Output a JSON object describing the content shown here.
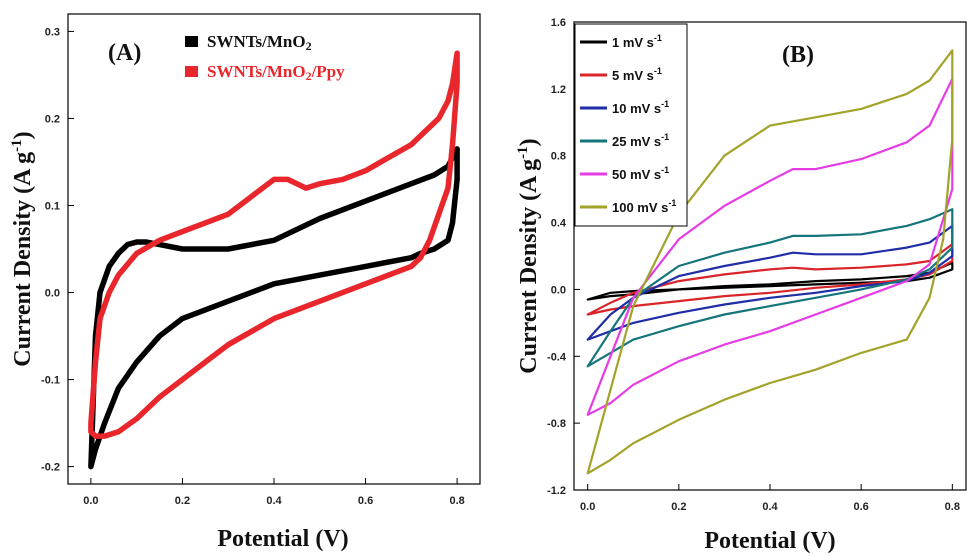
{
  "chart_data": [
    {
      "type": "line",
      "panel_label": "(A)",
      "xlabel": "Potential (V)",
      "ylabel": "Current Density (A g-1)",
      "xlim": [
        -0.05,
        0.85
      ],
      "ylim": [
        -0.22,
        0.32
      ],
      "xticks": [
        "0.0",
        "0.2",
        "0.4",
        "0.6",
        "0.8"
      ],
      "yticks": [
        "-0.2",
        "-0.1",
        "0.0",
        "0.1",
        "0.2",
        "0.3"
      ],
      "legend_position": "top",
      "series": [
        {
          "name": "SWNTs/MnO2",
          "color": "#000000",
          "x": [
            0.0,
            0.01,
            0.02,
            0.04,
            0.06,
            0.08,
            0.1,
            0.12,
            0.15,
            0.2,
            0.3,
            0.4,
            0.5,
            0.6,
            0.7,
            0.75,
            0.78,
            0.79,
            0.8,
            0.8,
            0.79,
            0.78,
            0.75,
            0.72,
            0.7,
            0.6,
            0.5,
            0.4,
            0.3,
            0.2,
            0.15,
            0.1,
            0.06,
            0.03,
            0.01,
            0.0
          ],
          "y": [
            -0.2,
            -0.05,
            0.0,
            0.03,
            0.045,
            0.055,
            0.058,
            0.058,
            0.055,
            0.05,
            0.05,
            0.06,
            0.085,
            0.105,
            0.125,
            0.135,
            0.145,
            0.155,
            0.165,
            0.13,
            0.08,
            0.06,
            0.05,
            0.045,
            0.04,
            0.03,
            0.02,
            0.01,
            -0.01,
            -0.03,
            -0.05,
            -0.08,
            -0.11,
            -0.15,
            -0.18,
            -0.2
          ]
        },
        {
          "name": "SWNTs/MnO2/Ppy",
          "color": "#e8262b",
          "x": [
            0.0,
            0.01,
            0.02,
            0.04,
            0.06,
            0.1,
            0.15,
            0.2,
            0.25,
            0.3,
            0.35,
            0.4,
            0.43,
            0.47,
            0.5,
            0.55,
            0.6,
            0.65,
            0.7,
            0.74,
            0.76,
            0.78,
            0.79,
            0.8,
            0.8,
            0.79,
            0.78,
            0.76,
            0.74,
            0.72,
            0.7,
            0.6,
            0.5,
            0.4,
            0.3,
            0.25,
            0.2,
            0.15,
            0.1,
            0.06,
            0.03,
            0.01,
            0.0
          ],
          "y": [
            -0.15,
            -0.08,
            -0.03,
            0.0,
            0.02,
            0.045,
            0.06,
            0.07,
            0.08,
            0.09,
            0.11,
            0.13,
            0.13,
            0.12,
            0.125,
            0.13,
            0.14,
            0.155,
            0.17,
            0.19,
            0.2,
            0.22,
            0.24,
            0.275,
            0.24,
            0.17,
            0.12,
            0.09,
            0.06,
            0.04,
            0.03,
            0.01,
            -0.01,
            -0.03,
            -0.06,
            -0.08,
            -0.1,
            -0.12,
            -0.145,
            -0.16,
            -0.165,
            -0.165,
            -0.16
          ]
        }
      ]
    },
    {
      "type": "line",
      "panel_label": "(B)",
      "xlabel": "Potential (V)",
      "ylabel": "Current Density (A g-1)",
      "xlim": [
        -0.03,
        0.83
      ],
      "ylim": [
        -1.2,
        1.6
      ],
      "xticks": [
        "0.0",
        "0.2",
        "0.4",
        "0.6",
        "0.8"
      ],
      "yticks": [
        "-1.2",
        "-0.8",
        "-0.4",
        "0.0",
        "0.4",
        "0.8",
        "1.2",
        "1.6"
      ],
      "legend_position": "top-left",
      "series": [
        {
          "name": "1 mV s-1",
          "color": "#000000",
          "x": [
            0.0,
            0.05,
            0.1,
            0.2,
            0.3,
            0.4,
            0.5,
            0.6,
            0.7,
            0.75,
            0.8,
            0.8,
            0.75,
            0.7,
            0.6,
            0.5,
            0.4,
            0.3,
            0.2,
            0.1,
            0.05,
            0.0
          ],
          "y": [
            -0.06,
            -0.04,
            -0.03,
            0.0,
            0.02,
            0.03,
            0.05,
            0.06,
            0.08,
            0.1,
            0.16,
            0.12,
            0.07,
            0.05,
            0.04,
            0.03,
            0.02,
            0.01,
            0.0,
            -0.01,
            -0.02,
            -0.06
          ]
        },
        {
          "name": "5 mV s-1",
          "color": "#d9252a",
          "x": [
            0.0,
            0.05,
            0.1,
            0.2,
            0.3,
            0.4,
            0.45,
            0.5,
            0.6,
            0.7,
            0.75,
            0.8,
            0.8,
            0.75,
            0.7,
            0.6,
            0.5,
            0.4,
            0.3,
            0.2,
            0.1,
            0.05,
            0.0
          ],
          "y": [
            -0.15,
            -0.08,
            -0.02,
            0.05,
            0.09,
            0.12,
            0.13,
            0.12,
            0.13,
            0.15,
            0.17,
            0.27,
            0.17,
            0.09,
            0.06,
            0.03,
            0.01,
            -0.02,
            -0.04,
            -0.07,
            -0.1,
            -0.12,
            -0.15
          ]
        },
        {
          "name": "10 mV s-1",
          "color": "#1f2ea6",
          "x": [
            0.0,
            0.05,
            0.1,
            0.2,
            0.3,
            0.4,
            0.45,
            0.5,
            0.6,
            0.7,
            0.75,
            0.8,
            0.8,
            0.75,
            0.7,
            0.6,
            0.5,
            0.4,
            0.3,
            0.2,
            0.1,
            0.05,
            0.0
          ],
          "y": [
            -0.3,
            -0.15,
            -0.05,
            0.08,
            0.14,
            0.19,
            0.22,
            0.21,
            0.21,
            0.25,
            0.28,
            0.38,
            0.2,
            0.1,
            0.05,
            0.02,
            -0.02,
            -0.05,
            -0.09,
            -0.14,
            -0.2,
            -0.25,
            -0.3
          ]
        },
        {
          "name": "25 mV s-1",
          "color": "#16757a",
          "x": [
            0.0,
            0.05,
            0.1,
            0.2,
            0.3,
            0.4,
            0.45,
            0.5,
            0.6,
            0.7,
            0.75,
            0.8,
            0.8,
            0.75,
            0.7,
            0.6,
            0.5,
            0.4,
            0.3,
            0.2,
            0.1,
            0.05,
            0.0
          ],
          "y": [
            -0.46,
            -0.25,
            -0.05,
            0.14,
            0.22,
            0.28,
            0.32,
            0.32,
            0.33,
            0.38,
            0.42,
            0.48,
            0.25,
            0.12,
            0.06,
            0.0,
            -0.05,
            -0.1,
            -0.15,
            -0.22,
            -0.3,
            -0.38,
            -0.46
          ]
        },
        {
          "name": "50 mV s-1",
          "color": "#e63ce6",
          "x": [
            0.0,
            0.05,
            0.1,
            0.2,
            0.3,
            0.4,
            0.45,
            0.5,
            0.6,
            0.7,
            0.75,
            0.8,
            0.8,
            0.75,
            0.7,
            0.6,
            0.5,
            0.4,
            0.3,
            0.2,
            0.1,
            0.05,
            0.0
          ],
          "y": [
            -0.75,
            -0.4,
            -0.05,
            0.3,
            0.5,
            0.65,
            0.72,
            0.72,
            0.78,
            0.88,
            0.98,
            1.26,
            0.6,
            0.15,
            0.05,
            -0.05,
            -0.15,
            -0.25,
            -0.33,
            -0.43,
            -0.57,
            -0.68,
            -0.75
          ]
        },
        {
          "name": "100 mV s-1",
          "color": "#a3a22a",
          "x": [
            0.0,
            0.05,
            0.1,
            0.2,
            0.3,
            0.4,
            0.5,
            0.6,
            0.7,
            0.75,
            0.8,
            0.8,
            0.78,
            0.75,
            0.72,
            0.7,
            0.6,
            0.5,
            0.4,
            0.3,
            0.2,
            0.1,
            0.05,
            0.0
          ],
          "y": [
            -1.1,
            -0.6,
            -0.1,
            0.45,
            0.8,
            0.98,
            1.03,
            1.08,
            1.17,
            1.25,
            1.43,
            0.9,
            0.3,
            -0.05,
            -0.2,
            -0.3,
            -0.38,
            -0.48,
            -0.56,
            -0.66,
            -0.78,
            -0.92,
            -1.02,
            -1.1
          ]
        }
      ]
    }
  ]
}
